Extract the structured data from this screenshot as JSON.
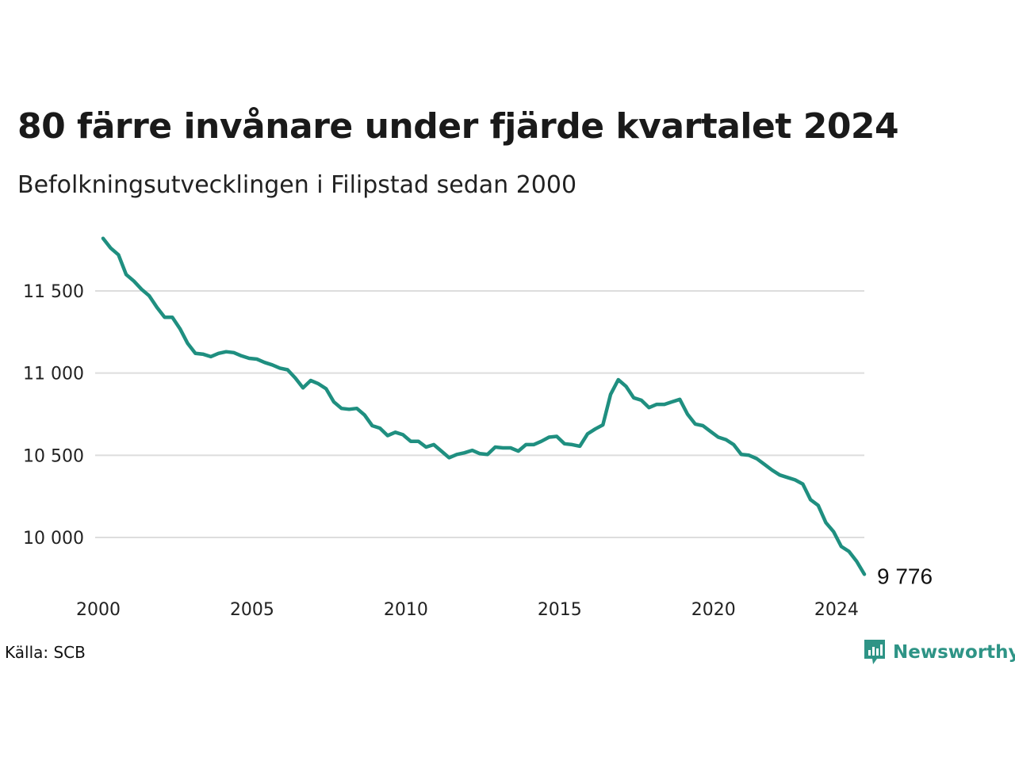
{
  "title": "80 färre invånare under fjärde kvartalet 2024",
  "subtitle": "Befolkningsutvecklingen i Filipstad sedan 2000",
  "source": "Källa: SCB",
  "brand": {
    "name": "Newsworthy",
    "icon": "newsworthy-logo-icon",
    "color": "#2e9486"
  },
  "chart_data": {
    "type": "line",
    "line_color": "#1f8f80",
    "grid": true,
    "grid_color": "#dddddd",
    "x_start": 2000,
    "x_step": 0.25,
    "xlim": [
      2000,
      2024.75
    ],
    "ylim": [
      9700,
      11850
    ],
    "x_ticks": [
      {
        "value": 2000,
        "label": "2000"
      },
      {
        "value": 2005,
        "label": "2005"
      },
      {
        "value": 2010,
        "label": "2010"
      },
      {
        "value": 2015,
        "label": "2015"
      },
      {
        "value": 2020,
        "label": "2020"
      },
      {
        "value": 2024,
        "label": "2024"
      }
    ],
    "y_ticks": [
      {
        "value": 10000,
        "label": "10 000"
      },
      {
        "value": 10500,
        "label": "10 500"
      },
      {
        "value": 11000,
        "label": "11 000"
      },
      {
        "value": 11500,
        "label": "11 500"
      }
    ],
    "end_label": "9 776",
    "values": [
      11820,
      11760,
      11720,
      11600,
      11560,
      11510,
      11470,
      11400,
      11340,
      11340,
      11270,
      11180,
      11120,
      11115,
      11100,
      11120,
      11130,
      11125,
      11105,
      11090,
      11085,
      11065,
      11050,
      11030,
      11020,
      10970,
      10910,
      10955,
      10935,
      10905,
      10825,
      10785,
      10780,
      10785,
      10745,
      10680,
      10665,
      10620,
      10640,
      10625,
      10585,
      10585,
      10550,
      10565,
      10525,
      10485,
      10505,
      10515,
      10530,
      10510,
      10505,
      10550,
      10545,
      10545,
      10525,
      10565,
      10565,
      10585,
      10610,
      10615,
      10570,
      10565,
      10555,
      10630,
      10660,
      10685,
      10870,
      10960,
      10920,
      10850,
      10835,
      10790,
      10810,
      10810,
      10825,
      10840,
      10750,
      10690,
      10680,
      10645,
      10610,
      10595,
      10565,
      10505,
      10500,
      10480,
      10445,
      10410,
      10380,
      10365,
      10350,
      10325,
      10230,
      10195,
      10090,
      10035,
      9945,
      9915,
      9855,
      9776
    ]
  }
}
